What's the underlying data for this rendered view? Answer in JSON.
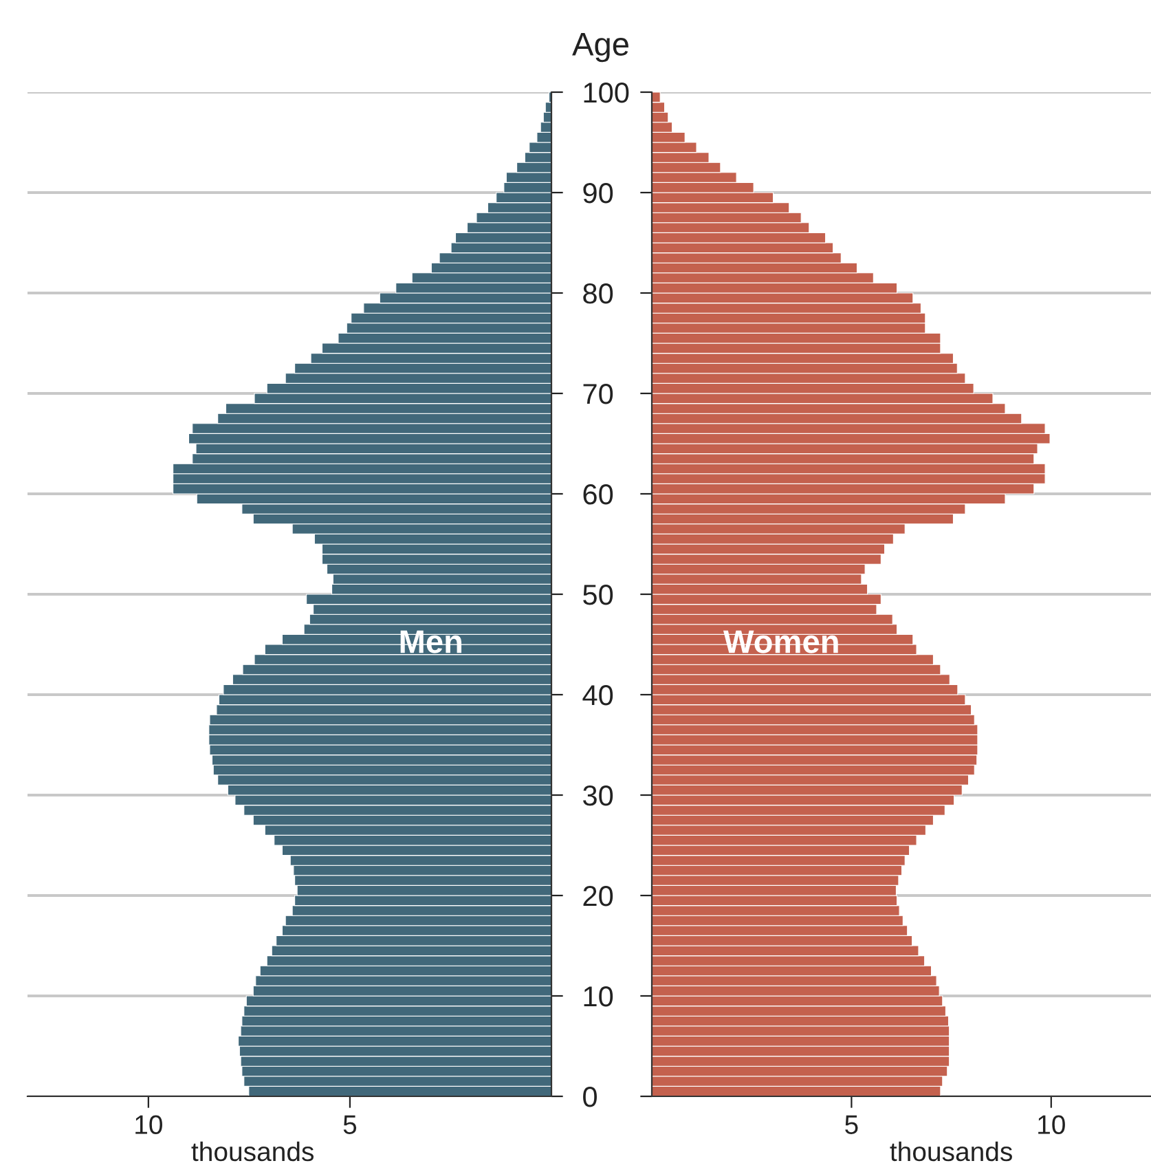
{
  "chart_data": [
    {
      "type": "bar",
      "orientation": "horizontal",
      "ylabel": "Age",
      "xlabel": "thousands",
      "xlim": [
        13,
        0
      ],
      "xticks": [
        10,
        5
      ],
      "ylim": [
        0,
        100
      ],
      "yticks": [
        0,
        10,
        20,
        30,
        40,
        50,
        60,
        70,
        80,
        90,
        100
      ],
      "grid": "y",
      "x": [
        0,
        1,
        2,
        3,
        4,
        5,
        6,
        7,
        8,
        9,
        10,
        11,
        12,
        13,
        14,
        15,
        16,
        17,
        18,
        19,
        20,
        21,
        22,
        23,
        24,
        25,
        26,
        27,
        28,
        29,
        30,
        31,
        32,
        33,
        34,
        35,
        36,
        37,
        38,
        39,
        40,
        41,
        42,
        43,
        44,
        45,
        46,
        47,
        48,
        49,
        50,
        51,
        52,
        53,
        54,
        55,
        56,
        57,
        58,
        59,
        60,
        61,
        62,
        63,
        64,
        65,
        66,
        67,
        68,
        69,
        70,
        71,
        72,
        73,
        74,
        75,
        76,
        77,
        78,
        79,
        80,
        81,
        82,
        83,
        84,
        85,
        86,
        87,
        88,
        89,
        90,
        91,
        92,
        93,
        94,
        95,
        96,
        97,
        98,
        99
      ],
      "series": [
        {
          "name": "Men",
          "color": "#41687a",
          "values": [
            7.51,
            7.63,
            7.68,
            7.71,
            7.74,
            7.77,
            7.71,
            7.68,
            7.63,
            7.57,
            7.4,
            7.34,
            7.23,
            7.06,
            6.94,
            6.83,
            6.68,
            6.6,
            6.43,
            6.37,
            6.31,
            6.37,
            6.4,
            6.48,
            6.68,
            6.88,
            7.11,
            7.4,
            7.63,
            7.85,
            8.03,
            8.28,
            8.39,
            8.42,
            8.48,
            8.5,
            8.5,
            8.48,
            8.31,
            8.25,
            8.14,
            7.91,
            7.66,
            7.37,
            7.11,
            6.68,
            6.14,
            6.0,
            5.91,
            6.08,
            5.45,
            5.42,
            5.57,
            5.69,
            5.69,
            5.88,
            6.43,
            7.4,
            7.68,
            8.8,
            9.39,
            9.39,
            9.39,
            8.91,
            8.82,
            9.0,
            8.91,
            8.28,
            8.08,
            7.37,
            7.06,
            6.6,
            6.37,
            5.97,
            5.69,
            5.29,
            5.08,
            4.97,
            4.66,
            4.26,
            3.86,
            3.46,
            2.98,
            2.78,
            2.49,
            2.38,
            2.09,
            1.86,
            1.58,
            1.37,
            1.18,
            1.12,
            0.86,
            0.66,
            0.55,
            0.36,
            0.27,
            0.2,
            0.15,
            0.06
          ]
        }
      ]
    },
    {
      "type": "bar",
      "orientation": "horizontal",
      "xlabel": "thousands",
      "xlim": [
        0,
        12.5
      ],
      "xticks": [
        5,
        10
      ],
      "ylim": [
        0,
        100
      ],
      "yticks": [
        0,
        10,
        20,
        30,
        40,
        50,
        60,
        70,
        80,
        90,
        100
      ],
      "grid": "y",
      "tick_labels": "x",
      "x": [
        0,
        1,
        2,
        3,
        4,
        5,
        6,
        7,
        8,
        9,
        10,
        11,
        12,
        13,
        14,
        15,
        16,
        17,
        18,
        19,
        20,
        21,
        22,
        23,
        24,
        25,
        26,
        27,
        28,
        29,
        30,
        31,
        32,
        33,
        34,
        35,
        36,
        37,
        38,
        39,
        40,
        41,
        42,
        43,
        44,
        45,
        46,
        47,
        48,
        49,
        50,
        51,
        52,
        53,
        54,
        55,
        56,
        57,
        58,
        59,
        60,
        61,
        62,
        63,
        64,
        65,
        66,
        67,
        68,
        69,
        70,
        71,
        72,
        73,
        74,
        75,
        76,
        77,
        78,
        79,
        80,
        81,
        82,
        83,
        84,
        85,
        86,
        87,
        88,
        89,
        90,
        91,
        92,
        93,
        94,
        95,
        96,
        97,
        98,
        99
      ],
      "series": [
        {
          "name": "Women",
          "color": "#c4614e",
          "values": [
            7.23,
            7.28,
            7.4,
            7.45,
            7.45,
            7.45,
            7.45,
            7.43,
            7.36,
            7.28,
            7.2,
            7.13,
            7.0,
            6.83,
            6.68,
            6.52,
            6.4,
            6.29,
            6.2,
            6.14,
            6.12,
            6.18,
            6.26,
            6.34,
            6.45,
            6.63,
            6.86,
            7.05,
            7.34,
            7.57,
            7.77,
            7.93,
            8.08,
            8.14,
            8.16,
            8.16,
            8.16,
            8.08,
            8.0,
            7.85,
            7.66,
            7.46,
            7.23,
            7.05,
            6.63,
            6.54,
            6.14,
            6.03,
            5.63,
            5.74,
            5.4,
            5.25,
            5.34,
            5.74,
            5.83,
            6.05,
            6.34,
            7.55,
            7.85,
            8.85,
            9.57,
            9.85,
            9.85,
            9.57,
            9.66,
            9.97,
            9.85,
            9.26,
            8.85,
            8.54,
            8.06,
            7.85,
            7.65,
            7.55,
            7.23,
            7.23,
            6.85,
            6.85,
            6.74,
            6.54,
            6.14,
            5.55,
            5.14,
            4.74,
            4.54,
            4.35,
            3.94,
            3.74,
            3.44,
            3.04,
            2.55,
            2.12,
            1.72,
            1.43,
            1.12,
            0.83,
            0.51,
            0.41,
            0.32,
            0.21
          ]
        }
      ]
    }
  ]
}
